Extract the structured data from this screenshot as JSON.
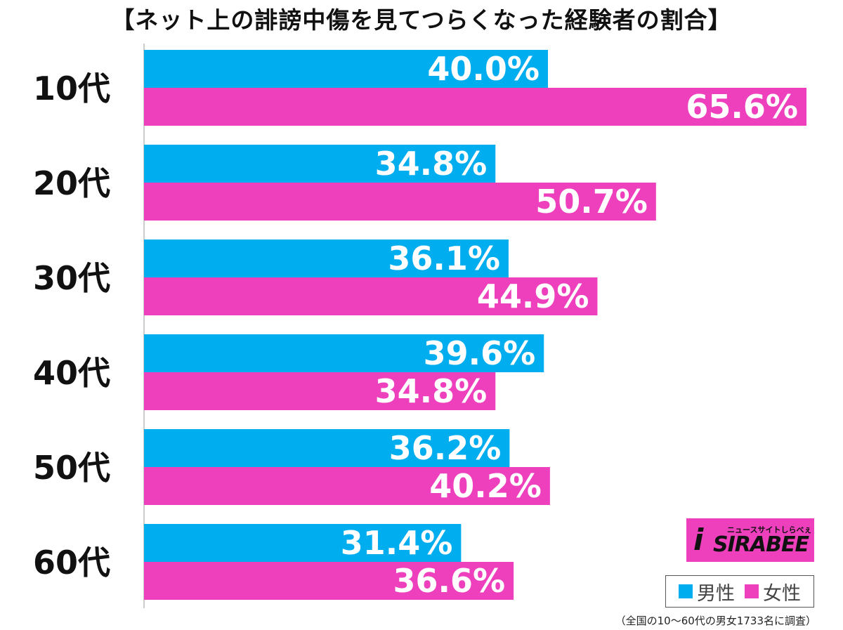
{
  "chart_data": {
    "type": "bar",
    "orientation": "horizontal",
    "title": "【ネット上の誹謗中傷を見てつらくなった経験者の割合】",
    "categories": [
      "10代",
      "20代",
      "30代",
      "40代",
      "50代",
      "60代"
    ],
    "series": [
      {
        "name": "男性",
        "color": "#00aeef",
        "values": [
          40.0,
          34.8,
          36.1,
          39.6,
          36.2,
          31.4
        ]
      },
      {
        "name": "女性",
        "color": "#ee3fbd",
        "values": [
          65.6,
          50.7,
          44.9,
          34.8,
          40.2,
          36.6
        ]
      }
    ],
    "value_labels": [
      [
        "40.0%",
        "34.8%",
        "36.1%",
        "39.6%",
        "36.2%",
        "31.4%"
      ],
      [
        "65.6%",
        "50.7%",
        "44.9%",
        "34.8%",
        "40.2%",
        "36.6%"
      ]
    ],
    "xlim": [
      0,
      66
    ],
    "grid": false,
    "legend_position": "bottom-right",
    "note": "（全国の10〜60代の男女1733名に調査）"
  },
  "logo": {
    "text": "SIRABEE",
    "subtext": "ニュースサイトしらべぇ",
    "mark": "i",
    "color": "#ee3fbd"
  }
}
